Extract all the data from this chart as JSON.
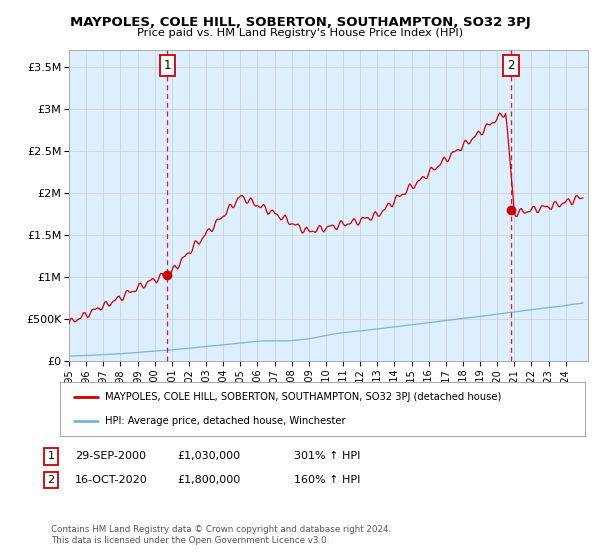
{
  "title": "MAYPOLES, COLE HILL, SOBERTON, SOUTHAMPTON, SO32 3PJ",
  "subtitle": "Price paid vs. HM Land Registry's House Price Index (HPI)",
  "ylabel_ticks": [
    "£0",
    "£500K",
    "£1M",
    "£1.5M",
    "£2M",
    "£2.5M",
    "£3M",
    "£3.5M"
  ],
  "ytick_values": [
    0,
    500000,
    1000000,
    1500000,
    2000000,
    2500000,
    3000000,
    3500000
  ],
  "ylim": [
    0,
    3700000
  ],
  "xlim_start": 1995.0,
  "xlim_end": 2025.3,
  "hpi_color": "#7ab4d8",
  "price_color": "#cc0000",
  "plot_bg_color": "#ddeeff",
  "marker1_date": 2000.75,
  "marker1_price": 1030000,
  "marker2_date": 2020.79,
  "marker2_price": 1800000,
  "legend_label1": "MAYPOLES, COLE HILL, SOBERTON, SOUTHAMPTON, SO32 3PJ (detached house)",
  "legend_label2": "HPI: Average price, detached house, Winchester",
  "table_row1": [
    "1",
    "29-SEP-2000",
    "£1,030,000",
    "301% ↑ HPI"
  ],
  "table_row2": [
    "2",
    "16-OCT-2020",
    "£1,800,000",
    "160% ↑ HPI"
  ],
  "footer": "Contains HM Land Registry data © Crown copyright and database right 2024.\nThis data is licensed under the Open Government Licence v3.0.",
  "background_color": "#ffffff",
  "grid_color": "#cccccc"
}
